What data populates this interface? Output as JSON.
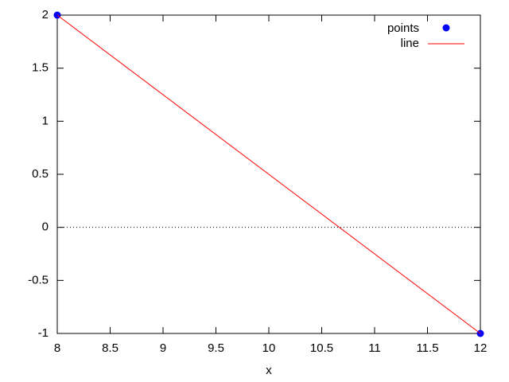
{
  "chart_data": {
    "type": "line",
    "xlabel": "x",
    "xlim": [
      8,
      12
    ],
    "xticks": [
      8,
      8.5,
      9,
      9.5,
      10,
      10.5,
      11,
      11.5,
      12
    ],
    "ylim": [
      -1,
      2
    ],
    "yticks": [
      -1,
      -0.5,
      0,
      0.5,
      1,
      1.5,
      2
    ],
    "zero_axis": true,
    "legend": "top-right",
    "series": [
      {
        "name": "points",
        "style": "points",
        "color": "#0000ff",
        "x": [
          8,
          12
        ],
        "values": [
          2,
          -1
        ]
      },
      {
        "name": "line",
        "style": "line",
        "color": "#ff0000",
        "x": [
          8,
          12
        ],
        "values": [
          2,
          -1
        ]
      }
    ]
  }
}
